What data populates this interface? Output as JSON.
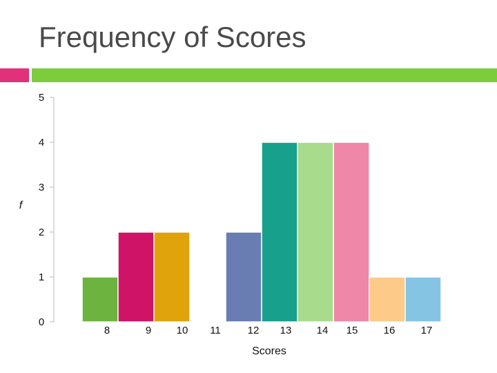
{
  "slide": {
    "title": "Frequency of Scores",
    "accent_pink": "#e0317a",
    "accent_green": "#7dcc3c"
  },
  "chart_data": {
    "type": "bar",
    "title": "Frequency of Scores",
    "xlabel": "Scores",
    "ylabel": "f",
    "ylim": [
      0,
      5
    ],
    "yticks": [
      0,
      1,
      2,
      3,
      4,
      5
    ],
    "x_tick_labels": [
      "8",
      "9",
      "10",
      "11",
      "12",
      "13",
      "14",
      "15",
      "16",
      "17"
    ],
    "categories": [
      "8",
      "9",
      "10",
      "11",
      "12",
      "13",
      "14",
      "15",
      "16",
      "17"
    ],
    "values": [
      1,
      2,
      2,
      0,
      2,
      4,
      4,
      4,
      1,
      1
    ],
    "colors": [
      "#6db33f",
      "#cf1468",
      "#e0a30c",
      "#ffffff",
      "#6a7db3",
      "#17a08c",
      "#a8dc8c",
      "#ee87a8",
      "#fdca8a",
      "#86c4e4"
    ],
    "grid": false,
    "legend": "none"
  }
}
